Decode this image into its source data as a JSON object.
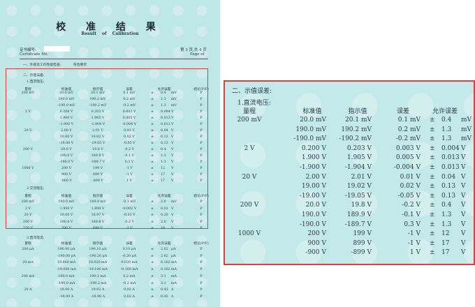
{
  "header": {
    "title_cn": "校 准 结 果",
    "title_en": "Result of Calibration",
    "cert_no_label_cn": "证书编号:",
    "cert_no_label_en": "Certificate No.",
    "page_cn": "第 3 页,共 4 页",
    "page_en": "Page  of"
  },
  "appearance": {
    "label": "一、外观及工作性能检查:",
    "value": "符合要求"
  },
  "indication": {
    "title": "二、示值误差:",
    "columns": [
      "量程",
      "标准值",
      "指示值",
      "误差",
      "允许误差",
      "结论(P/F)"
    ],
    "sections": [
      {
        "title": "1.直流电压:",
        "rows": [
          [
            "200 mV",
            "20.0 mV",
            "20.1 mV",
            "0.1 mV",
            "±",
            "0.4",
            "mV",
            "P"
          ],
          [
            "",
            "190.0 mV",
            "190.2 mV",
            "0.2 mV",
            "±",
            "1.3",
            "mV",
            "P"
          ],
          [
            "",
            "-190.0 mV",
            "-190.2 mV",
            "-0.2 mV",
            "±",
            "1.3",
            "mV",
            "P"
          ],
          [
            "2 V",
            "0.200 V",
            "0.203 V",
            "0.003 V",
            "±",
            "0.004",
            "V",
            "P"
          ],
          [
            "",
            "1.900 V",
            "1.905 V",
            "0.005 V",
            "±",
            "0.013",
            "V",
            "P"
          ],
          [
            "",
            "-1.900 V",
            "-1.904 V",
            "-0.004 V",
            "±",
            "0.013",
            "V",
            "P"
          ],
          [
            "20 V",
            "2.00 V",
            "2.01 V",
            "0.01 V",
            "±",
            "0.04",
            "V",
            "P"
          ],
          [
            "",
            "19.00 V",
            "19.02 V",
            "0.02 V",
            "±",
            "0.13",
            "V",
            "P"
          ],
          [
            "",
            "-19.00 V",
            "-19.05 V",
            "-0.05 V",
            "±",
            "0.13",
            "V",
            "P"
          ],
          [
            "200 V",
            "20.0 V",
            "19.8 V",
            "-0.2 V",
            "±",
            "0.4",
            "V",
            "P"
          ],
          [
            "",
            "190.0 V",
            "189.9 V",
            "-0.1 V",
            "±",
            "1.3",
            "V",
            "P"
          ],
          [
            "",
            "-190.0 V",
            "-189.7 V",
            "0.3 V",
            "±",
            "1.3",
            "V",
            "P"
          ],
          [
            "1000 V",
            "200 V",
            "199 V",
            "-1 V",
            "±",
            "12",
            "V",
            "P"
          ],
          [
            "",
            "900 V",
            "899 V",
            "-1 V",
            "±",
            "17",
            "V",
            "P"
          ],
          [
            "",
            "-900 V",
            "-899 V",
            "1 V",
            "±",
            "17",
            "V",
            "P"
          ]
        ]
      },
      {
        "title": "2.交流电压:",
        "rows": [
          [
            "200 mV",
            "190.0 mV",
            "189.9 mV",
            "-0.1 mV",
            "±",
            "2.0",
            "mV",
            "P"
          ],
          [
            "2 V",
            "1.900 V",
            "1.898 V",
            "-0.002 V",
            "±",
            "0.02",
            "V",
            "P"
          ],
          [
            "20 V",
            "19.00 V",
            "18.97 V",
            "-0.03 V",
            "±",
            "0.20",
            "V",
            "P"
          ],
          [
            "200 V",
            "190.0 V",
            "189.8 V",
            "-0.2 V",
            "±",
            "2.0",
            "V",
            "P"
          ],
          [
            "750 V",
            "700 V",
            "699 V",
            "-1 V",
            "±",
            "18",
            "V",
            "P"
          ]
        ]
      },
      {
        "title": "3.直流电流:",
        "rows": [
          [
            "200 μA",
            "190.00 μA",
            "190.10 μA",
            "0.10 μA",
            "±",
            "2.02",
            "μA",
            "P"
          ],
          [
            "",
            "-190.00 μA",
            "-190.20 μA",
            "-0.20 μA",
            "±",
            "2.02",
            "μA",
            "P"
          ],
          [
            "20 mA",
            "19.000 mA",
            "19.020 mA",
            "0.020 mA",
            "±",
            "0.162",
            "mA",
            "P"
          ],
          [
            "",
            "-19.000 mA",
            "-19.100 mA",
            "-0.100 mA",
            "±",
            "0.162",
            "mA",
            "P"
          ],
          [
            "200 mA",
            "190.0 mA",
            "190.2 mA",
            "0.2 mA",
            "±",
            "3.1",
            "mA",
            "P"
          ],
          [
            "",
            "-190.0 mA",
            "-190.2 mA",
            "-0.2 mA",
            "±",
            "3.1",
            "mA",
            "P"
          ],
          [
            "20 A",
            "19.00 A",
            "19.02 A",
            "0.02 A",
            "±",
            "0.43",
            "A",
            "P"
          ],
          [
            "",
            "-19.00 A",
            "-18.98 A",
            "0.02 A",
            "±",
            "0.43",
            "A",
            "P"
          ]
        ]
      }
    ]
  },
  "colors": {
    "highlight_border": "#d94040",
    "paper": "#bfe7e6"
  }
}
